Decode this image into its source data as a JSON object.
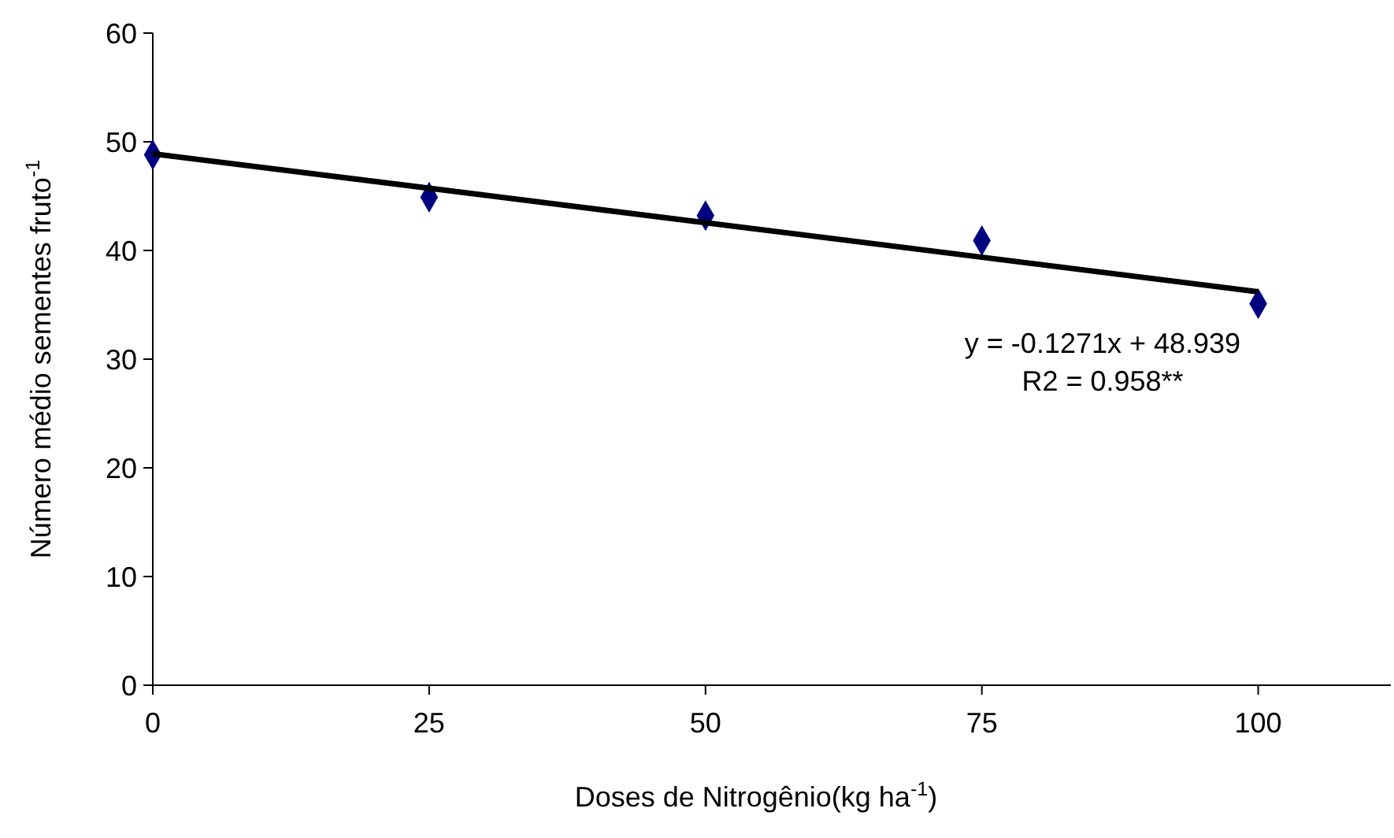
{
  "chart_data": {
    "type": "scatter",
    "xlabel": "Doses de Nitrogênio(kg ha$^{-1}$)",
    "ylabel": "Número médio sementes fruto$^{-1}$",
    "xlim": [
      0,
      112
    ],
    "xticks": [
      0,
      25,
      50,
      75,
      100
    ],
    "ylim": [
      0,
      60
    ],
    "yticks": [
      0,
      10,
      20,
      30,
      40,
      50,
      60
    ],
    "grid": false,
    "series": [
      {
        "color": "#000080",
        "marker": "diamond",
        "x": [
          0,
          25,
          50,
          75,
          100
        ],
        "values": [
          48.8,
          44.9,
          43.2,
          40.9,
          35.1
        ]
      },
      {
        "type": "line",
        "color": "#000000",
        "marker": "none",
        "line_style": "solid",
        "x": [
          0,
          100
        ],
        "values": [
          48.9,
          36.2
        ]
      }
    ],
    "annotations": [
      "y = -0.1271x + 48.939",
      "R2 = 0.958**"
    ]
  }
}
